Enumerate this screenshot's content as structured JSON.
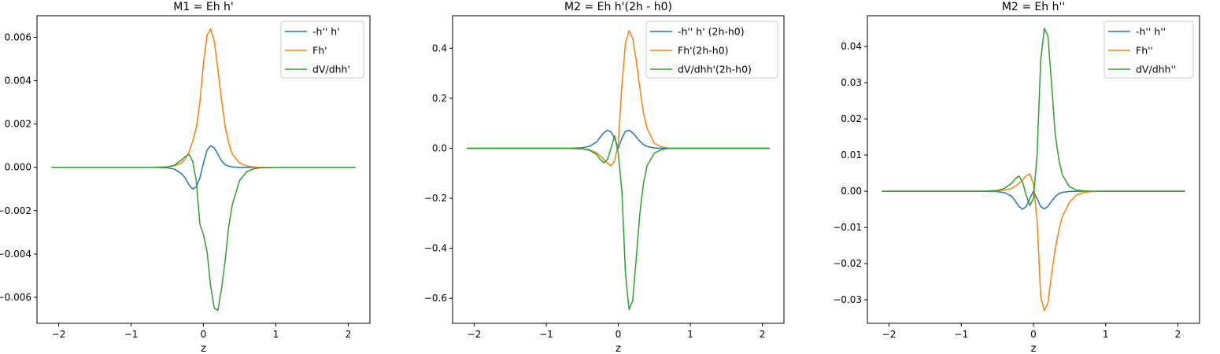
{
  "chart_data": [
    {
      "type": "line",
      "title": "M1 = Eh h'",
      "xlabel": "z",
      "ylabel": "",
      "xlim": [
        -2.3,
        2.3
      ],
      "ylim": [
        -0.0072,
        0.007
      ],
      "xticks": [
        -2,
        -1,
        0,
        1,
        2
      ],
      "xtick_labels": [
        "−2",
        "−1",
        "0",
        "1",
        "2"
      ],
      "yticks": [
        -0.006,
        -0.004,
        -0.002,
        0.0,
        0.002,
        0.004,
        0.006
      ],
      "ytick_labels": [
        "−0.006",
        "−0.004",
        "−0.002",
        "0.000",
        "0.002",
        "0.004",
        "0.006"
      ],
      "grid": false,
      "legend_position": "top-right",
      "x": [
        -2.1,
        -1.5,
        -1.0,
        -0.7,
        -0.5,
        -0.4,
        -0.3,
        -0.25,
        -0.2,
        -0.15,
        -0.1,
        -0.05,
        0.0,
        0.05,
        0.1,
        0.15,
        0.2,
        0.25,
        0.3,
        0.35,
        0.4,
        0.5,
        0.6,
        0.7,
        0.8,
        1.0,
        1.5,
        2.1
      ],
      "series": [
        {
          "name": "-h'' h'",
          "color": "#1f77b4",
          "values": [
            0,
            0,
            0,
            0,
            -2e-05,
            -8e-05,
            -0.0003,
            -0.0005,
            -0.0008,
            -0.001,
            -0.0009,
            -0.0005,
            0.0002,
            0.0008,
            0.001,
            0.0009,
            0.0006,
            0.0003,
            0.00012,
            5e-05,
            2e-05,
            0,
            0,
            0,
            0,
            0,
            0,
            0
          ]
        },
        {
          "name": "Fh'",
          "color": "#ff7f0e",
          "values": [
            0,
            0,
            0,
            0,
            2e-05,
            8e-05,
            0.0002,
            0.0004,
            0.0007,
            0.0012,
            0.0018,
            0.003,
            0.0048,
            0.0061,
            0.0064,
            0.0058,
            0.0045,
            0.0031,
            0.0019,
            0.0011,
            0.0006,
            0.0002,
            6e-05,
            2e-05,
            0,
            0,
            0,
            0
          ]
        },
        {
          "name": "dV/dhh'",
          "color": "#2ca02c",
          "values": [
            0,
            0,
            0,
            0,
            2e-05,
            0.0001,
            0.00035,
            0.0005,
            0.0006,
            0.0003,
            -0.0006,
            -0.0026,
            -0.0031,
            -0.0039,
            -0.0055,
            -0.0065,
            -0.0066,
            -0.0056,
            -0.0043,
            -0.0027,
            -0.0017,
            -0.0006,
            -0.0002,
            -6e-05,
            -2e-05,
            0,
            0,
            0
          ]
        }
      ]
    },
    {
      "type": "line",
      "title": "M2 = Eh h'(2h - h0)",
      "xlabel": "z",
      "ylabel": "",
      "xlim": [
        -2.3,
        2.3
      ],
      "ylim": [
        -0.7,
        0.53
      ],
      "xticks": [
        -2,
        -1,
        0,
        1,
        2
      ],
      "xtick_labels": [
        "−2",
        "−1",
        "0",
        "1",
        "2"
      ],
      "yticks": [
        -0.6,
        -0.4,
        -0.2,
        0.0,
        0.2,
        0.4
      ],
      "ytick_labels": [
        "−0.6",
        "−0.4",
        "−0.2",
        "0.0",
        "0.2",
        "0.4"
      ],
      "grid": false,
      "legend_position": "top-right",
      "x": [
        -2.1,
        -1.5,
        -1.0,
        -0.7,
        -0.5,
        -0.4,
        -0.3,
        -0.25,
        -0.2,
        -0.15,
        -0.1,
        -0.05,
        0.0,
        0.05,
        0.1,
        0.15,
        0.2,
        0.25,
        0.3,
        0.35,
        0.4,
        0.5,
        0.6,
        0.7,
        0.8,
        1.0,
        1.5,
        2.1
      ],
      "series": [
        {
          "name": "-h'' h' (2h-h0)",
          "color": "#1f77b4",
          "values": [
            0,
            0,
            0,
            0,
            0.002,
            0.008,
            0.025,
            0.045,
            0.062,
            0.072,
            0.065,
            0.04,
            0.0,
            0.04,
            0.068,
            0.072,
            0.062,
            0.045,
            0.028,
            0.015,
            0.007,
            0.001,
            0,
            0,
            0,
            0,
            0,
            0
          ]
        },
        {
          "name": "Fh'(2h-h0)",
          "color": "#ff7f0e",
          "values": [
            0,
            0,
            0,
            0,
            -0.002,
            -0.006,
            -0.018,
            -0.03,
            -0.045,
            -0.06,
            -0.07,
            -0.05,
            0.02,
            0.25,
            0.42,
            0.47,
            0.44,
            0.35,
            0.24,
            0.14,
            0.08,
            0.02,
            0.005,
            0.001,
            0,
            0,
            0,
            0
          ]
        },
        {
          "name": "dV/dhh'(2h-h0)",
          "color": "#2ca02c",
          "values": [
            0,
            0,
            0,
            0,
            -0.002,
            -0.008,
            -0.025,
            -0.045,
            -0.058,
            -0.045,
            0.0,
            0.05,
            -0.02,
            -0.17,
            -0.5,
            -0.645,
            -0.61,
            -0.44,
            -0.26,
            -0.14,
            -0.07,
            -0.02,
            -0.005,
            -0.001,
            0,
            0,
            0,
            0
          ]
        }
      ]
    },
    {
      "type": "line",
      "title": "M2 = Eh h''",
      "xlabel": "z",
      "ylabel": "",
      "xlim": [
        -2.3,
        2.3
      ],
      "ylim": [
        -0.0365,
        0.0485
      ],
      "xticks": [
        -2,
        -1,
        0,
        1,
        2
      ],
      "xtick_labels": [
        "−2",
        "−1",
        "0",
        "1",
        "2"
      ],
      "yticks": [
        -0.03,
        -0.02,
        -0.01,
        0.0,
        0.01,
        0.02,
        0.03,
        0.04
      ],
      "ytick_labels": [
        "−0.03",
        "−0.02",
        "−0.01",
        "0.00",
        "0.01",
        "0.02",
        "0.03",
        "0.04"
      ],
      "grid": false,
      "legend_position": "top-right",
      "x": [
        -2.1,
        -1.5,
        -1.0,
        -0.7,
        -0.5,
        -0.4,
        -0.3,
        -0.25,
        -0.2,
        -0.15,
        -0.1,
        -0.05,
        0.0,
        0.05,
        0.1,
        0.15,
        0.2,
        0.25,
        0.3,
        0.35,
        0.4,
        0.5,
        0.6,
        0.7,
        0.8,
        1.0,
        1.5,
        2.1
      ],
      "series": [
        {
          "name": "-h'' h''",
          "color": "#1f77b4",
          "values": [
            0,
            0,
            0,
            0,
            -0.0001,
            -0.0004,
            -0.0014,
            -0.0028,
            -0.0042,
            -0.005,
            -0.0042,
            -0.002,
            0.0,
            -0.002,
            -0.0042,
            -0.0049,
            -0.0042,
            -0.0028,
            -0.0015,
            -0.0007,
            -0.0003,
            -5e-05,
            0,
            0,
            0,
            0,
            0,
            0
          ]
        },
        {
          "name": "Fh''",
          "color": "#ff7f0e",
          "values": [
            0,
            0,
            0,
            0,
            0.0001,
            0.0003,
            0.0008,
            0.0014,
            0.0022,
            0.0032,
            0.0042,
            0.0048,
            0.002,
            -0.008,
            -0.029,
            -0.033,
            -0.031,
            -0.023,
            -0.016,
            -0.011,
            -0.007,
            -0.003,
            -0.001,
            -0.0003,
            -0.0001,
            0,
            0,
            0
          ]
        },
        {
          "name": "dV/dhh''",
          "color": "#2ca02c",
          "values": [
            0,
            0,
            0,
            0,
            0.0002,
            0.0008,
            0.0022,
            0.0035,
            0.0042,
            0.0025,
            -0.0012,
            -0.004,
            -0.002,
            0.01,
            0.036,
            0.045,
            0.043,
            0.03,
            0.016,
            0.009,
            0.0045,
            0.0012,
            0.0003,
            0.0001,
            0,
            0,
            0,
            0
          ]
        }
      ]
    }
  ]
}
